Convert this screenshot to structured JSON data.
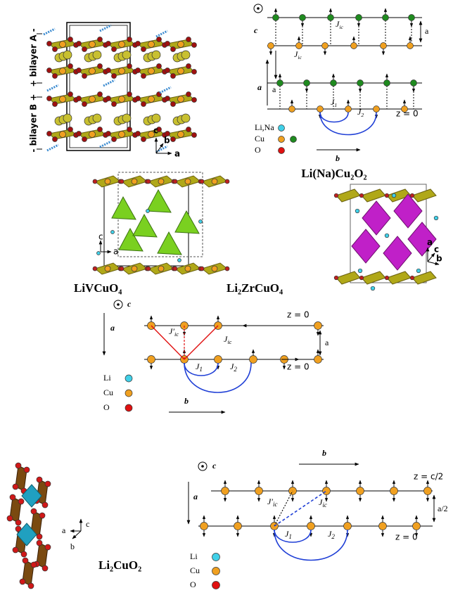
{
  "licu2o2_structure": {
    "bilayer_a": "+ bilayer A -",
    "bilayer_b": "- bilayer B +",
    "axes": {
      "c": "c",
      "b": "b",
      "a": "a"
    }
  },
  "licu2o2_chain": {
    "out_of_plane": "c",
    "a_arrow": "a",
    "b_arrow": "b",
    "spacing_top": "a",
    "spacing_left": "a",
    "couplings": {
      "jic_top": {
        "symbol": "J",
        "sub": "ic"
      },
      "jic_mid": {
        "symbol": "J",
        "sub": "ic"
      },
      "j1": {
        "symbol": "J",
        "sub": "1"
      },
      "j2": {
        "symbol": "J",
        "sub": "2"
      }
    },
    "z_label": "z = 0",
    "legend": [
      "Li,Na",
      "Cu",
      "O"
    ],
    "title": "Li(Na)Cu₂O₂"
  },
  "livcuo4": {
    "title": "LiVCuO₄",
    "axes": {
      "c": "c",
      "a": "a"
    }
  },
  "li2zrcuo4": {
    "title": "Li₂ZrCuO₄",
    "axes": {
      "a": "a",
      "c": "c",
      "b": "b"
    }
  },
  "livcuo4_chain": {
    "out_of_plane": "c",
    "a_arrow": "a",
    "b_arrow": "b",
    "spacing": "a",
    "couplings": {
      "jic_prime": {
        "symbol": "J′",
        "sub": "ic"
      },
      "jic": {
        "symbol": "J",
        "sub": "ic"
      },
      "j1": {
        "symbol": "J",
        "sub": "1"
      },
      "j2": {
        "symbol": "J",
        "sub": "2"
      }
    },
    "z_top": "z = 0",
    "z_bottom": "z = 0",
    "legend": [
      "Li",
      "Cu",
      "O"
    ]
  },
  "li2cuo2": {
    "title": "Li₂CuO₂",
    "axes": {
      "c": "c",
      "a": "a",
      "b": "b"
    }
  },
  "li2cuo2_chain": {
    "out_of_plane": "c",
    "a_arrow": "a",
    "b_arrow": "b",
    "spacing": "a/2",
    "couplings": {
      "jic_prime": {
        "symbol": "J′",
        "sub": "ic"
      },
      "jic": {
        "symbol": "J",
        "sub": "ic"
      },
      "j1": {
        "symbol": "J",
        "sub": "1"
      },
      "j2": {
        "symbol": "J",
        "sub": "2"
      }
    },
    "z_top": "z = c/2",
    "z_bottom": "z = 0",
    "legend": [
      "Li",
      "Cu",
      "O"
    ]
  }
}
